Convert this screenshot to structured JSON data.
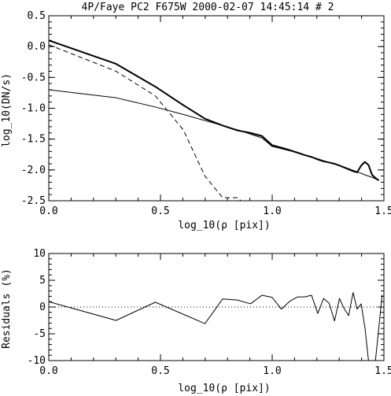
{
  "chart_data": [
    {
      "type": "line",
      "title": "4P/Faye PC2 F675W 2000-02-07 14:45:14 # 2",
      "xlabel": "log_10(ρ [pix])",
      "ylabel": "log_10(DN/s)",
      "xlim": [
        0.0,
        1.5
      ],
      "ylim": [
        -2.5,
        0.5
      ],
      "xticks": [
        0.0,
        0.5,
        1.0,
        1.5
      ],
      "xtick_labels": [
        "0.0",
        "0.5",
        "1.0",
        "1.5"
      ],
      "yticks": [
        -2.5,
        -2.0,
        -1.5,
        -1.0,
        -0.5,
        0.0,
        0.5
      ],
      "ytick_labels": [
        "-2.5",
        "-2.0",
        "-1.5",
        "-1.0",
        "-0.5",
        "0.0",
        "0.5"
      ],
      "series": [
        {
          "style": "thick-solid",
          "points": [
            [
              0.0,
              0.1
            ],
            [
              0.301,
              -0.28
            ],
            [
              0.477,
              -0.65
            ],
            [
              0.602,
              -0.95
            ],
            [
              0.699,
              -1.17
            ],
            [
              0.778,
              -1.28
            ],
            [
              0.845,
              -1.36
            ],
            [
              0.903,
              -1.4
            ],
            [
              0.954,
              -1.45
            ],
            [
              1.0,
              -1.6
            ],
            [
              1.041,
              -1.64
            ],
            [
              1.079,
              -1.68
            ],
            [
              1.114,
              -1.72
            ],
            [
              1.146,
              -1.76
            ],
            [
              1.176,
              -1.79
            ],
            [
              1.204,
              -1.83
            ],
            [
              1.23,
              -1.86
            ],
            [
              1.255,
              -1.88
            ],
            [
              1.279,
              -1.9
            ],
            [
              1.301,
              -1.93
            ],
            [
              1.322,
              -1.96
            ],
            [
              1.342,
              -1.99
            ],
            [
              1.362,
              -2.02
            ],
            [
              1.38,
              -2.04
            ],
            [
              1.398,
              -1.93
            ],
            [
              1.415,
              -1.87
            ],
            [
              1.431,
              -1.92
            ],
            [
              1.447,
              -2.08
            ],
            [
              1.462,
              -2.13
            ],
            [
              1.477,
              -2.17
            ]
          ]
        },
        {
          "style": "dashed",
          "points": [
            [
              0.0,
              0.03
            ],
            [
              0.301,
              -0.4
            ],
            [
              0.477,
              -0.8
            ],
            [
              0.602,
              -1.35
            ],
            [
              0.699,
              -2.1
            ],
            [
              0.778,
              -2.45
            ],
            [
              0.845,
              -2.45
            ],
            [
              0.86,
              -2.5
            ]
          ]
        },
        {
          "style": "thin-solid",
          "points": [
            [
              0.0,
              -0.7
            ],
            [
              0.301,
              -0.83
            ],
            [
              0.477,
              -0.98
            ],
            [
              0.602,
              -1.1
            ],
            [
              0.699,
              -1.2
            ],
            [
              0.778,
              -1.28
            ],
            [
              0.845,
              -1.35
            ],
            [
              0.903,
              -1.42
            ],
            [
              0.954,
              -1.48
            ],
            [
              1.0,
              -1.62
            ],
            [
              1.079,
              -1.69
            ],
            [
              1.146,
              -1.76
            ],
            [
              1.204,
              -1.82
            ],
            [
              1.255,
              -1.88
            ],
            [
              1.301,
              -1.93
            ],
            [
              1.342,
              -1.98
            ],
            [
              1.38,
              -2.03
            ],
            [
              1.415,
              -2.08
            ],
            [
              1.447,
              -2.12
            ],
            [
              1.477,
              -2.17
            ]
          ]
        }
      ]
    },
    {
      "type": "line",
      "xlabel": "log_10(ρ [pix])",
      "ylabel": "Residuals (%)",
      "xlim": [
        0.0,
        1.5
      ],
      "ylim": [
        -10,
        10
      ],
      "xticks": [
        0.0,
        0.5,
        1.0,
        1.5
      ],
      "xtick_labels": [
        "0.0",
        "0.5",
        "1.0",
        "1.5"
      ],
      "yticks": [
        -10,
        -5,
        0,
        5,
        10
      ],
      "ytick_labels": [
        "-10",
        "-5",
        "0",
        "5",
        "10"
      ],
      "reference_line": {
        "y": 0,
        "style": "dotted"
      },
      "series": [
        {
          "style": "thin-solid",
          "points": [
            [
              0.0,
              1.0
            ],
            [
              0.301,
              -2.5
            ],
            [
              0.477,
              0.9
            ],
            [
              0.699,
              -3.1
            ],
            [
              0.778,
              1.5
            ],
            [
              0.845,
              1.3
            ],
            [
              0.903,
              0.6
            ],
            [
              0.954,
              2.2
            ],
            [
              1.0,
              1.8
            ],
            [
              1.041,
              -0.4
            ],
            [
              1.079,
              1.1
            ],
            [
              1.114,
              1.9
            ],
            [
              1.146,
              1.9
            ],
            [
              1.176,
              2.2
            ],
            [
              1.204,
              -1.2
            ],
            [
              1.23,
              1.6
            ],
            [
              1.255,
              0.7
            ],
            [
              1.279,
              -2.6
            ],
            [
              1.301,
              1.6
            ],
            [
              1.322,
              -0.3
            ],
            [
              1.342,
              -1.6
            ],
            [
              1.362,
              2.7
            ],
            [
              1.38,
              -0.4
            ],
            [
              1.398,
              0.6
            ],
            [
              1.415,
              -3.8
            ],
            [
              1.431,
              -10.0
            ]
          ]
        },
        {
          "style": "thin-solid",
          "points": [
            [
              1.462,
              -10.0
            ],
            [
              1.477,
              -4.0
            ],
            [
              1.492,
              2.3
            ]
          ]
        }
      ]
    }
  ]
}
